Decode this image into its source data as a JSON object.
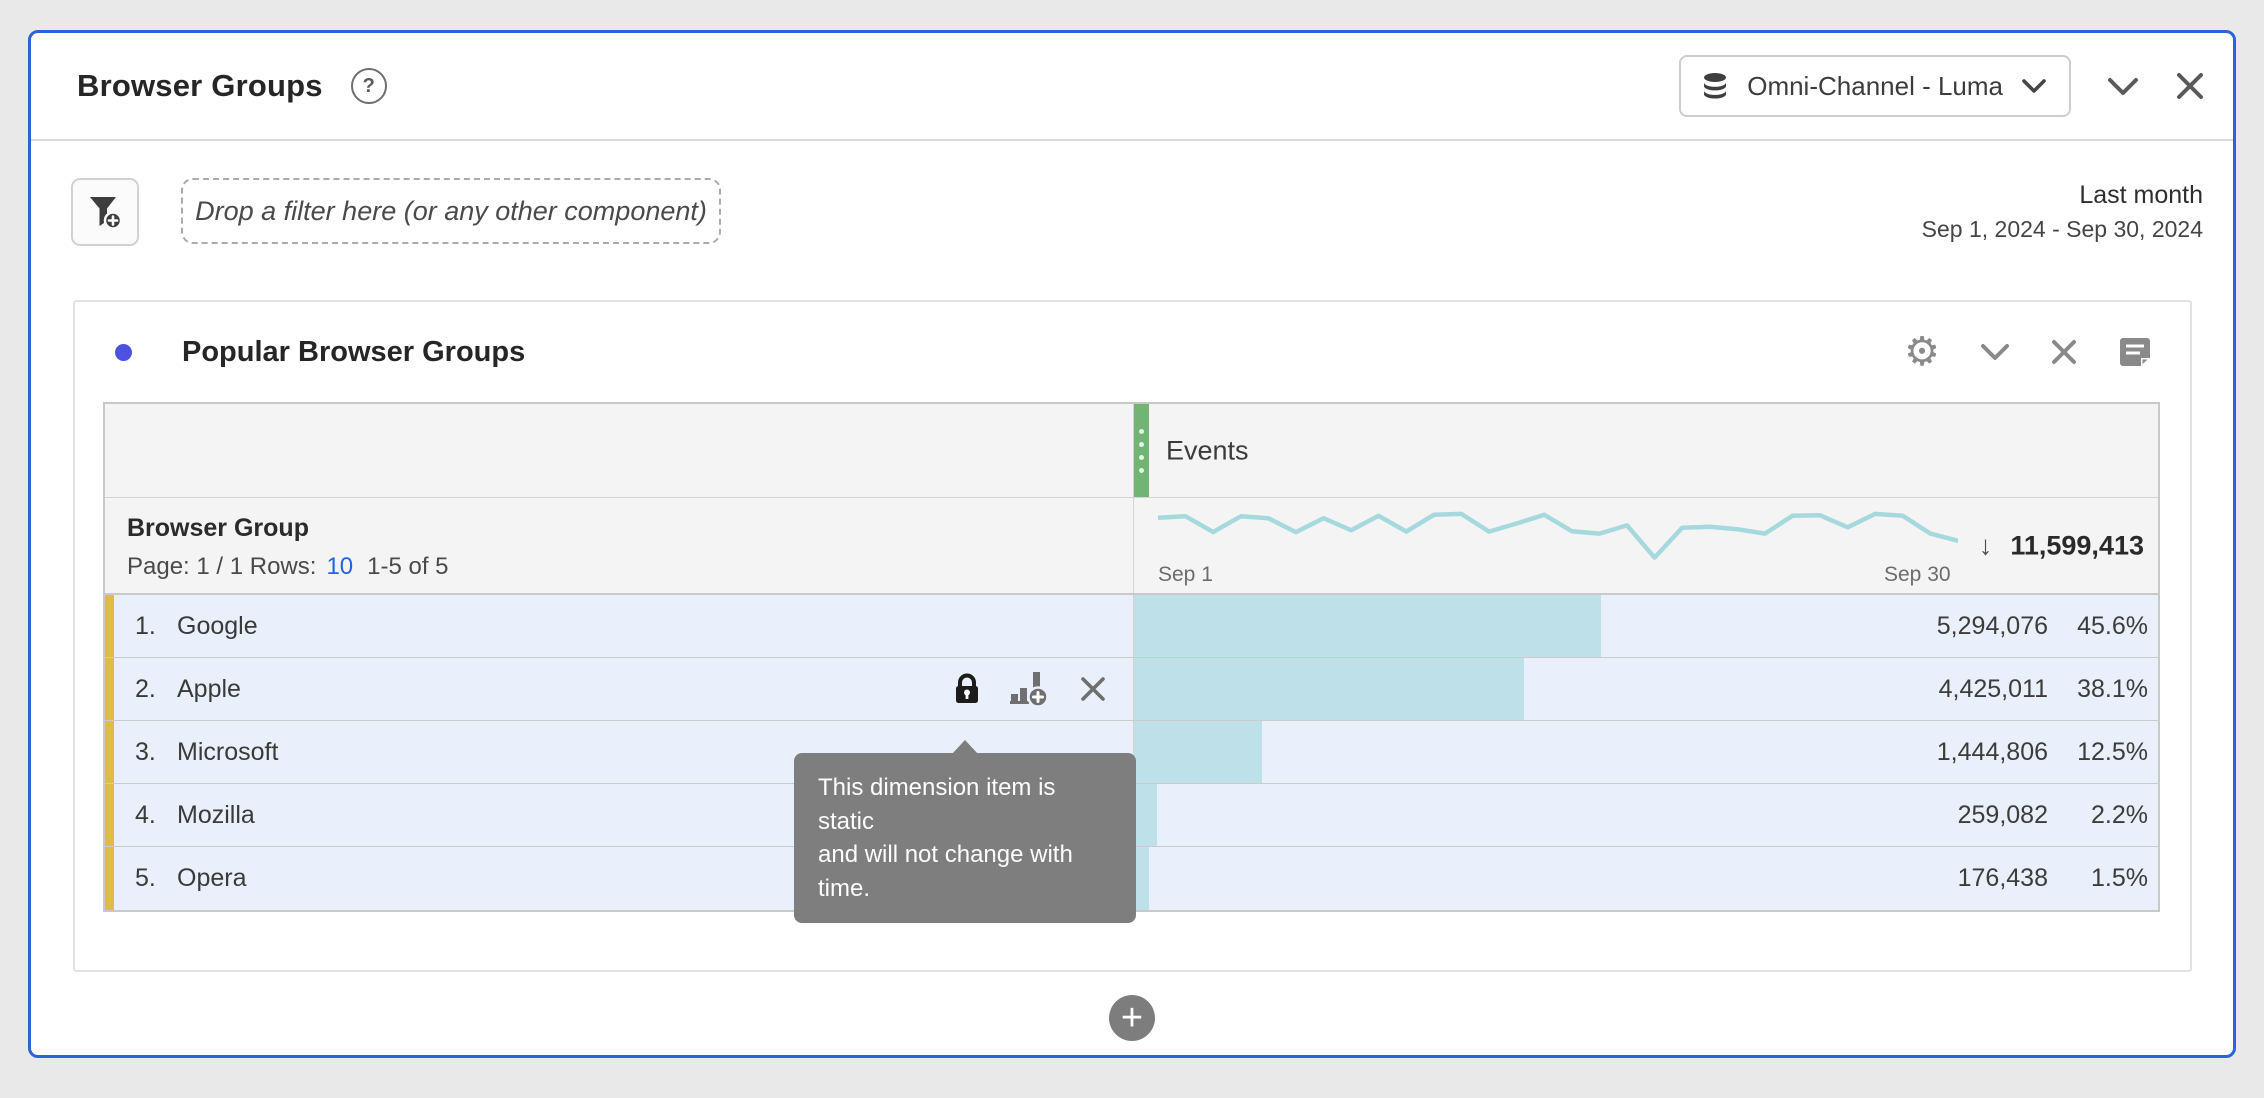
{
  "panel": {
    "title": "Browser Groups",
    "dataset_label": "Omni-Channel - Luma",
    "filter_placeholder": "Drop a filter here (or any other component)",
    "date_preset": "Last month",
    "date_range": "Sep 1, 2024 - Sep 30, 2024"
  },
  "freeform": {
    "title": "Popular Browser Groups",
    "events_header": "Events",
    "dimension_header": "Browser Group",
    "pagination_prefix": "Page: 1 / 1 Rows:",
    "rows_per_page": "10",
    "pagination_suffix": "1-5 of 5",
    "spark_start_label": "Sep 1",
    "spark_end_label": "Sep 30",
    "total": "11,599,413",
    "tooltip_line1": "This dimension item is static",
    "tooltip_line2": "and will not change with time.",
    "rows": [
      {
        "rank": "1.",
        "name": "Google",
        "value": "5,294,076",
        "pct": "45.6%",
        "pct_num": 45.6,
        "locked": false
      },
      {
        "rank": "2.",
        "name": "Apple",
        "value": "4,425,011",
        "pct": "38.1%",
        "pct_num": 38.1,
        "locked": true
      },
      {
        "rank": "3.",
        "name": "Microsoft",
        "value": "1,444,806",
        "pct": "12.5%",
        "pct_num": 12.5,
        "locked": false
      },
      {
        "rank": "4.",
        "name": "Mozilla",
        "value": "259,082",
        "pct": "2.2%",
        "pct_num": 2.2,
        "locked": false
      },
      {
        "rank": "5.",
        "name": "Opera",
        "value": "176,438",
        "pct": "1.5%",
        "pct_num": 1.5,
        "locked": false
      }
    ]
  },
  "icons": {
    "help": "?",
    "gear": "⚙",
    "sort_desc": "↓",
    "add": "+"
  },
  "colors": {
    "panel_border": "#2d63da",
    "accent_dot": "#4d51e0",
    "metric_strip_green": "#72b474",
    "dimension_strip_yellow": "#dcbd49",
    "row_background": "#e9effb",
    "bar_fill": "#bee0e8",
    "sparkline": "#a6d9de",
    "link_blue": "#2463de",
    "tooltip_gray": "#7e7e7e"
  },
  "chart_data": [
    {
      "type": "bar",
      "orientation": "horizontal",
      "title": "Popular Browser Groups",
      "xlabel": "Events",
      "ylabel": "Browser Group",
      "categories": [
        "Google",
        "Apple",
        "Microsoft",
        "Mozilla",
        "Opera"
      ],
      "values": [
        5294076,
        4425011,
        1444806,
        259082,
        176438
      ],
      "percentages": [
        45.6,
        38.1,
        12.5,
        2.2,
        1.5
      ],
      "total": 11599413,
      "sort": "descending by Events"
    },
    {
      "type": "line",
      "title": "Events daily sparkline",
      "x_start": "Sep 1",
      "x_end": "Sep 30",
      "y_axis": "unlabeled (normalized, 0 = high, 1 = low)",
      "points_norm_y": [
        0.14,
        0.11,
        0.44,
        0.11,
        0.15,
        0.44,
        0.15,
        0.4,
        0.1,
        0.43,
        0.08,
        0.06,
        0.43,
        0.26,
        0.08,
        0.42,
        0.47,
        0.3,
        0.97,
        0.35,
        0.33,
        0.38,
        0.47,
        0.1,
        0.09,
        0.34,
        0.06,
        0.1,
        0.47,
        0.62
      ]
    }
  ]
}
